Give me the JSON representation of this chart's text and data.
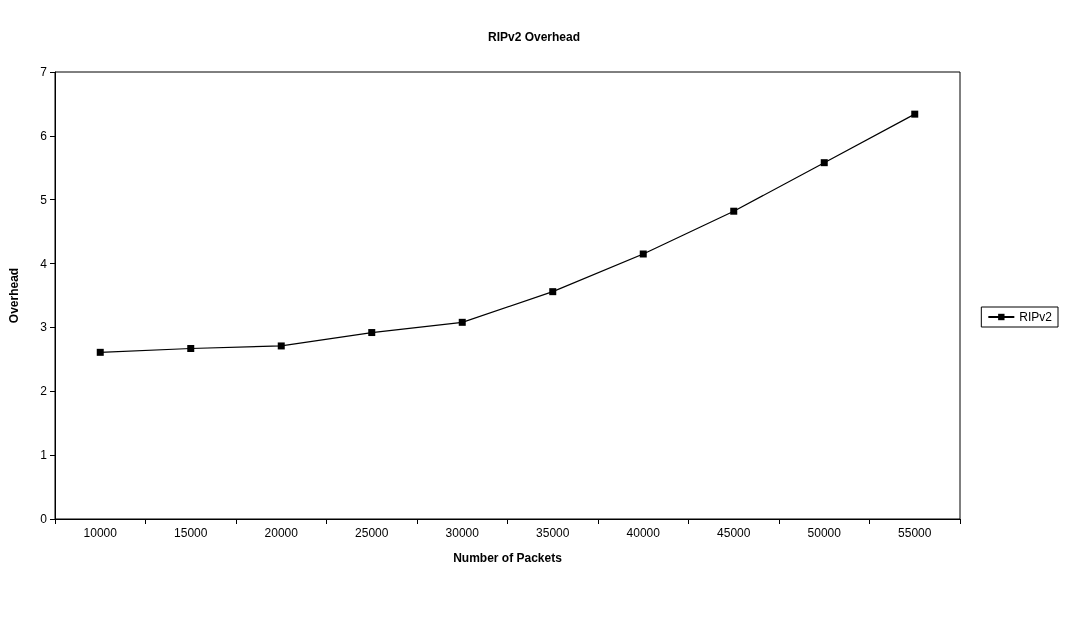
{
  "chart_data": {
    "type": "line",
    "title": "RIPv2 Overhead",
    "xlabel": "Number of Packets",
    "ylabel": "Overhead",
    "categories": [
      "10000",
      "15000",
      "20000",
      "25000",
      "30000",
      "35000",
      "40000",
      "45000",
      "50000",
      "55000"
    ],
    "series": [
      {
        "name": "RIPv2",
        "color": "#000000",
        "values": [
          2.61,
          2.67,
          2.71,
          2.92,
          3.08,
          3.56,
          4.15,
          4.82,
          5.58,
          6.34
        ]
      }
    ],
    "ylim": [
      0,
      7
    ],
    "yticks": [
      0,
      1,
      2,
      3,
      4,
      5,
      6,
      7
    ],
    "grid": false,
    "legend": "right",
    "marker": "square",
    "line_style": "solid"
  }
}
